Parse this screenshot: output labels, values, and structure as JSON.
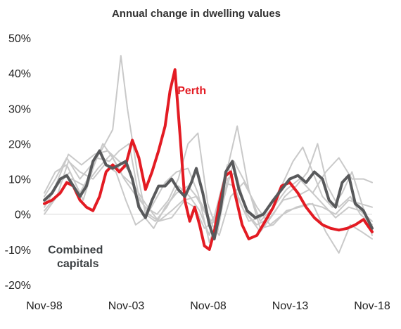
{
  "chart_data": {
    "type": "line",
    "title": "Annual change in dwelling values",
    "xlabel": "",
    "ylabel": "",
    "x_tick_labels": [
      "Nov-98",
      "Nov-03",
      "Nov-08",
      "Nov-13",
      "Nov-18"
    ],
    "x_tick_years": [
      1998.83,
      2003.83,
      2008.83,
      2013.83,
      2018.83
    ],
    "xlim": [
      1998.83,
      2018.83
    ],
    "y_tick_labels": [
      "50%",
      "40%",
      "30%",
      "20%",
      "10%",
      "0%",
      "-10%",
      "-20%"
    ],
    "y_ticks": [
      0.5,
      0.4,
      0.3,
      0.2,
      0.1,
      0.0,
      -0.1,
      -0.2
    ],
    "ylim": [
      -0.2,
      0.5
    ],
    "grid": false,
    "zero_line": true,
    "series": [
      {
        "name": "Perth",
        "color": "#e31b23",
        "width": 4,
        "x": [
          1998.83,
          1999.3,
          1999.8,
          2000.2,
          2000.6,
          2001.0,
          2001.4,
          2001.8,
          2002.2,
          2002.6,
          2003.0,
          2003.4,
          2003.8,
          2004.2,
          2004.6,
          2005.0,
          2005.4,
          2005.8,
          2006.2,
          2006.5,
          2006.8,
          2007.1,
          2007.4,
          2007.7,
          2008.0,
          2008.3,
          2008.6,
          2008.9,
          2009.2,
          2009.5,
          2009.9,
          2010.2,
          2010.5,
          2010.9,
          2011.3,
          2011.8,
          2012.3,
          2012.8,
          2013.3,
          2013.8,
          2014.3,
          2014.8,
          2015.3,
          2015.8,
          2016.3,
          2016.8,
          2017.3,
          2017.8,
          2018.3,
          2018.83
        ],
        "values": [
          0.03,
          0.04,
          0.06,
          0.09,
          0.08,
          0.04,
          0.02,
          0.01,
          0.05,
          0.12,
          0.14,
          0.12,
          0.14,
          0.21,
          0.16,
          0.07,
          0.12,
          0.18,
          0.25,
          0.35,
          0.41,
          0.23,
          0.04,
          -0.02,
          0.02,
          -0.03,
          -0.09,
          -0.1,
          -0.05,
          0.03,
          0.11,
          0.12,
          0.05,
          -0.03,
          -0.07,
          -0.06,
          -0.02,
          0.02,
          0.08,
          0.09,
          0.06,
          0.02,
          -0.01,
          -0.03,
          -0.04,
          -0.045,
          -0.04,
          -0.03,
          -0.015,
          -0.05
        ]
      },
      {
        "name": "Combined capitals",
        "color": "#58595b",
        "width": 4,
        "x": [
          1998.83,
          1999.3,
          1999.8,
          2000.2,
          2000.6,
          2001.0,
          2001.4,
          2001.8,
          2002.2,
          2002.6,
          2003.0,
          2003.4,
          2003.8,
          2004.2,
          2004.6,
          2005.0,
          2005.4,
          2005.8,
          2006.2,
          2006.6,
          2007.0,
          2007.4,
          2007.8,
          2008.1,
          2008.5,
          2008.9,
          2009.2,
          2009.6,
          2009.9,
          2010.3,
          2010.7,
          2011.2,
          2011.7,
          2012.2,
          2012.8,
          2013.3,
          2013.8,
          2014.3,
          2014.8,
          2015.3,
          2015.8,
          2016.2,
          2016.6,
          2017.0,
          2017.4,
          2017.8,
          2018.3,
          2018.83
        ],
        "values": [
          0.04,
          0.06,
          0.1,
          0.11,
          0.08,
          0.05,
          0.08,
          0.15,
          0.18,
          0.14,
          0.13,
          0.14,
          0.15,
          0.1,
          0.02,
          -0.01,
          0.04,
          0.08,
          0.08,
          0.1,
          0.07,
          0.05,
          0.09,
          0.13,
          0.06,
          -0.03,
          -0.07,
          0.02,
          0.12,
          0.15,
          0.07,
          0.01,
          -0.01,
          0.0,
          0.04,
          0.07,
          0.1,
          0.11,
          0.09,
          0.12,
          0.1,
          0.04,
          0.02,
          0.09,
          0.11,
          0.03,
          0.01,
          -0.04
        ]
      },
      {
        "color": "#c9c9c9",
        "width": 2,
        "x": [
          1998.83,
          1999.5,
          2000.2,
          2001.0,
          2001.7,
          2002.3,
          2003.0,
          2003.5,
          2003.9,
          2004.5,
          2005.0,
          2005.6,
          2006.3,
          2007.0,
          2007.7,
          2008.3,
          2008.9,
          2009.4,
          2010.0,
          2010.6,
          2011.3,
          2012.0,
          2012.7,
          2013.4,
          2014.0,
          2014.6,
          2015.2,
          2015.8,
          2016.4,
          2017.0,
          2017.6,
          2018.2,
          2018.83
        ],
        "values": [
          0.05,
          0.1,
          0.16,
          0.1,
          0.14,
          0.18,
          0.24,
          0.45,
          0.3,
          0.12,
          0.0,
          -0.02,
          0.02,
          0.08,
          0.05,
          0.01,
          -0.06,
          0.03,
          0.14,
          0.05,
          -0.02,
          -0.01,
          0.03,
          0.09,
          0.15,
          0.19,
          0.12,
          0.05,
          0.02,
          0.06,
          0.12,
          0.03,
          -0.06
        ]
      },
      {
        "color": "#c9c9c9",
        "width": 2,
        "x": [
          1998.83,
          1999.5,
          2000.2,
          2001.0,
          2001.7,
          2002.4,
          2003.0,
          2003.7,
          2004.3,
          2005.0,
          2005.7,
          2006.4,
          2007.0,
          2007.6,
          2008.2,
          2008.8,
          2009.4,
          2010.0,
          2010.5,
          2011.2,
          2012.0,
          2012.8,
          2013.5,
          2014.2,
          2014.9,
          2015.5,
          2016.1,
          2016.8,
          2017.5,
          2018.1,
          2018.83
        ],
        "values": [
          0.06,
          0.12,
          0.14,
          0.06,
          0.12,
          0.2,
          0.16,
          0.1,
          0.06,
          0.02,
          0.0,
          0.04,
          0.1,
          0.2,
          0.23,
          0.03,
          -0.05,
          0.1,
          0.12,
          0.0,
          -0.05,
          0.0,
          0.05,
          0.08,
          0.12,
          0.2,
          0.08,
          0.02,
          0.05,
          0.0,
          -0.03
        ]
      },
      {
        "color": "#c9c9c9",
        "width": 2,
        "x": [
          1998.83,
          1999.6,
          2000.4,
          2001.2,
          2002.0,
          2002.8,
          2003.4,
          2004.0,
          2004.6,
          2005.2,
          2005.8,
          2006.6,
          2007.3,
          2008.0,
          2008.6,
          2009.2,
          2009.8,
          2010.4,
          2011.0,
          2011.8,
          2012.6,
          2013.4,
          2014.2,
          2015.0,
          2015.8,
          2016.6,
          2017.4,
          2018.1,
          2018.83
        ],
        "values": [
          0.02,
          0.08,
          0.12,
          0.04,
          0.16,
          0.15,
          0.18,
          0.2,
          0.05,
          0.0,
          -0.02,
          0.01,
          0.04,
          0.02,
          -0.04,
          -0.02,
          0.09,
          0.08,
          0.01,
          -0.03,
          -0.01,
          0.04,
          0.05,
          0.07,
          0.03,
          -0.01,
          0.02,
          0.01,
          -0.02
        ]
      },
      {
        "color": "#c9c9c9",
        "width": 2,
        "x": [
          1998.83,
          1999.6,
          2000.3,
          2001.0,
          2001.8,
          2002.5,
          2003.2,
          2003.8,
          2004.4,
          2005.0,
          2005.6,
          2006.2,
          2006.9,
          2007.6,
          2008.2,
          2008.9,
          2009.5,
          2010.0,
          2010.6,
          2011.3,
          2012.0,
          2012.8,
          2013.6,
          2014.4,
          2015.2,
          2016.0,
          2016.8,
          2017.5,
          2018.2,
          2018.83
        ],
        "values": [
          0.0,
          0.05,
          0.15,
          0.12,
          0.1,
          0.14,
          0.12,
          0.04,
          -0.03,
          -0.01,
          0.04,
          0.09,
          0.12,
          0.13,
          0.06,
          -0.08,
          0.0,
          0.13,
          0.25,
          0.07,
          -0.04,
          -0.03,
          0.01,
          0.02,
          0.03,
          -0.05,
          -0.11,
          -0.03,
          -0.05,
          -0.07
        ]
      },
      {
        "color": "#c9c9c9",
        "width": 2,
        "x": [
          1998.83,
          1999.5,
          2000.3,
          2001.1,
          2001.9,
          2002.7,
          2003.4,
          2004.1,
          2004.8,
          2005.5,
          2006.2,
          2006.9,
          2007.6,
          2008.3,
          2009.0,
          2009.7,
          2010.4,
          2011.2,
          2012.0,
          2012.8,
          2013.6,
          2014.4,
          2015.2,
          2016.0,
          2016.8,
          2017.6,
          2018.3,
          2018.83
        ],
        "values": [
          0.03,
          0.08,
          0.17,
          0.14,
          0.17,
          0.18,
          0.15,
          0.12,
          0.0,
          -0.04,
          0.02,
          0.06,
          0.08,
          0.04,
          -0.02,
          0.03,
          0.15,
          0.08,
          -0.02,
          0.02,
          0.07,
          0.1,
          0.06,
          0.12,
          0.16,
          0.1,
          0.1,
          0.09
        ]
      },
      {
        "color": "#c9c9c9",
        "width": 2,
        "x": [
          1998.83,
          1999.7,
          2000.5,
          2001.3,
          2002.1,
          2002.9,
          2003.6,
          2004.3,
          2005.0,
          2005.8,
          2006.6,
          2007.4,
          2008.1,
          2008.8,
          2009.5,
          2010.2,
          2011.0,
          2011.8,
          2012.6,
          2013.4,
          2014.2,
          2015.0,
          2015.8,
          2016.6,
          2017.4,
          2018.1,
          2018.83
        ],
        "values": [
          0.01,
          0.06,
          0.1,
          0.08,
          0.13,
          0.17,
          0.11,
          0.08,
          0.03,
          -0.02,
          -0.01,
          0.04,
          0.05,
          -0.01,
          -0.06,
          0.05,
          0.09,
          0.02,
          -0.03,
          0.0,
          0.02,
          0.03,
          0.02,
          0.0,
          0.04,
          0.03,
          0.02
        ]
      }
    ],
    "annotations": [
      {
        "text": "Perth",
        "color": "#e31b23",
        "x": 2006.95,
        "y": 0.34
      },
      {
        "text": "Combined",
        "color": "#3c4043",
        "x": 1999.05,
        "y": -0.111
      },
      {
        "text": "capitals",
        "color": "#3c4043",
        "x": 1999.6,
        "y": -0.15
      }
    ]
  }
}
